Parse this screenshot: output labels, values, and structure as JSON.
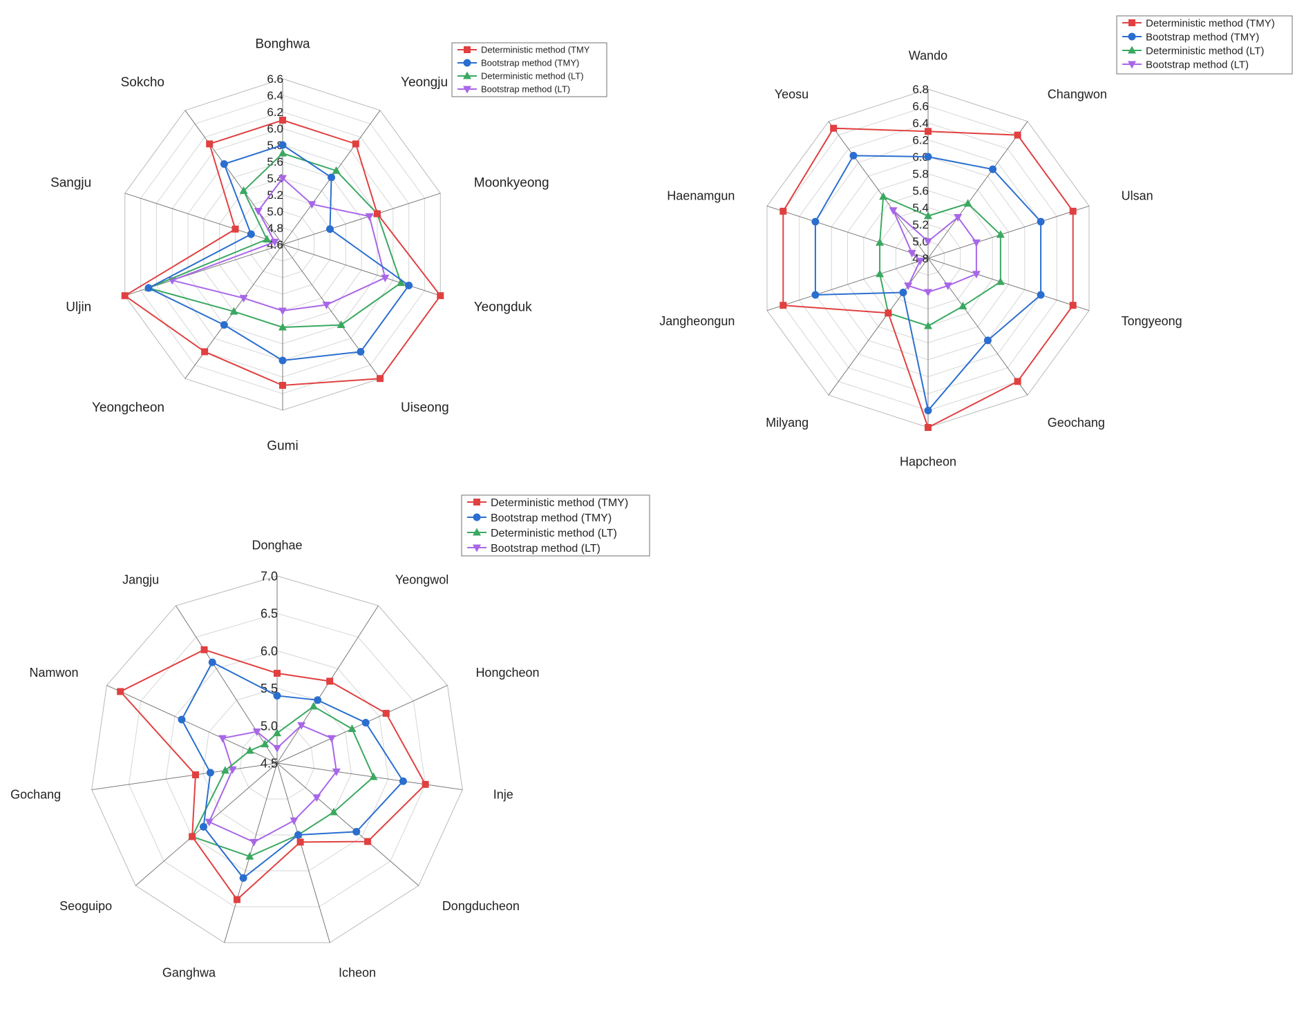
{
  "chart_data": [
    {
      "type": "radar",
      "categories": [
        "Bonghwa",
        "Yeongju",
        "Moonkyeong",
        "Yeongduk",
        "Uiseong",
        "Gumi",
        "Yeongcheon",
        "Uljin",
        "Sangju",
        "Sokcho"
      ],
      "rlim": [
        4.6,
        6.6
      ],
      "ticks": [
        "4.6",
        "4.8",
        "5.0",
        "5.2",
        "5.4",
        "5.6",
        "5.8",
        "6.0",
        "6.2",
        "6.4",
        "6.6"
      ],
      "grid": true,
      "legend_position": "top-right",
      "series": [
        {
          "name": "Deterministic method (TMY",
          "color": "#e04040",
          "marker": "square",
          "values": [
            6.1,
            6.1,
            5.8,
            6.6,
            6.6,
            6.3,
            6.2,
            6.6,
            5.2,
            6.1
          ]
        },
        {
          "name": "Bootstrap method (TMY)",
          "color": "#2a6ecf",
          "marker": "circle",
          "values": [
            5.8,
            5.6,
            5.2,
            6.2,
            6.2,
            6.0,
            5.8,
            6.3,
            5.0,
            5.8
          ]
        },
        {
          "name": "Deterministic method (LT)",
          "color": "#3aa860",
          "marker": "triangle",
          "values": [
            5.7,
            5.7,
            5.8,
            6.1,
            5.8,
            5.6,
            5.6,
            6.3,
            4.8,
            5.4
          ]
        },
        {
          "name": "Bootstrap method (LT)",
          "color": "#a866e8",
          "marker": "triangle-down",
          "values": [
            5.4,
            5.2,
            5.7,
            5.9,
            5.5,
            5.4,
            5.4,
            6.0,
            4.7,
            5.1
          ]
        }
      ]
    },
    {
      "type": "radar",
      "categories": [
        "Wando",
        "Changwon",
        "Ulsan",
        "Tongyeong",
        "Geochang",
        "Hapcheon",
        "Milyang",
        "Jangheongun",
        "Haenamgun",
        "Yeosu"
      ],
      "rlim": [
        4.8,
        6.8
      ],
      "ticks": [
        "4.8",
        "5.0",
        "5.2",
        "5.4",
        "5.6",
        "5.8",
        "6.0",
        "6.2",
        "6.4",
        "6.6",
        "6.8"
      ],
      "grid": true,
      "legend_position": "top-right",
      "series": [
        {
          "name": "Deterministic method (TMY)",
          "color": "#e04040",
          "marker": "square",
          "values": [
            6.3,
            6.6,
            6.6,
            6.6,
            6.6,
            6.8,
            5.6,
            6.6,
            6.6,
            6.7
          ]
        },
        {
          "name": "Bootstrap method (TMY)",
          "color": "#2a6ecf",
          "marker": "circle",
          "values": [
            6.0,
            6.1,
            6.2,
            6.2,
            6.0,
            6.6,
            5.3,
            6.2,
            6.2,
            6.3
          ]
        },
        {
          "name": "Deterministic method (LT)",
          "color": "#3aa860",
          "marker": "triangle",
          "values": [
            5.3,
            5.6,
            5.7,
            5.7,
            5.5,
            5.6,
            5.6,
            5.4,
            5.4,
            5.7
          ]
        },
        {
          "name": "Bootstrap method (LT)",
          "color": "#a866e8",
          "marker": "triangle-down",
          "values": [
            5.0,
            5.4,
            5.4,
            5.4,
            5.2,
            5.2,
            5.2,
            4.9,
            5.0,
            5.5
          ]
        }
      ]
    },
    {
      "type": "radar",
      "categories": [
        "Donghae",
        "Yeongwol",
        "Hongcheon",
        "Inje",
        "Dongducheon",
        "Icheon",
        "Ganghwa",
        "Seoguipo",
        "Gochang",
        "Namwon",
        "Jangju"
      ],
      "rlim": [
        4.5,
        7.0
      ],
      "ticks": [
        "4.5",
        "5.0",
        "5.5",
        "6.0",
        "6.5",
        "7.0"
      ],
      "grid": true,
      "legend_position": "top-right",
      "series": [
        {
          "name": "Deterministic method (TMY)",
          "color": "#e04040",
          "marker": "square",
          "values": [
            5.7,
            5.8,
            6.1,
            6.5,
            6.1,
            5.6,
            6.4,
            6.0,
            5.6,
            6.8,
            6.3
          ]
        },
        {
          "name": "Bootstrap method (TMY)",
          "color": "#2a6ecf",
          "marker": "circle",
          "values": [
            5.4,
            5.5,
            5.8,
            6.2,
            5.9,
            5.5,
            6.1,
            5.8,
            5.4,
            5.9,
            6.1
          ]
        },
        {
          "name": "Deterministic method (LT)",
          "color": "#3aa860",
          "marker": "triangle",
          "values": [
            4.9,
            5.4,
            5.6,
            5.8,
            5.5,
            5.5,
            5.8,
            6.0,
            5.2,
            4.9,
            4.8
          ]
        },
        {
          "name": "Bootstrap method (LT)",
          "color": "#a866e8",
          "marker": "triangle-down",
          "values": [
            4.7,
            5.1,
            5.3,
            5.3,
            5.2,
            5.3,
            5.6,
            5.7,
            5.1,
            5.3,
            5.0
          ]
        }
      ]
    }
  ]
}
